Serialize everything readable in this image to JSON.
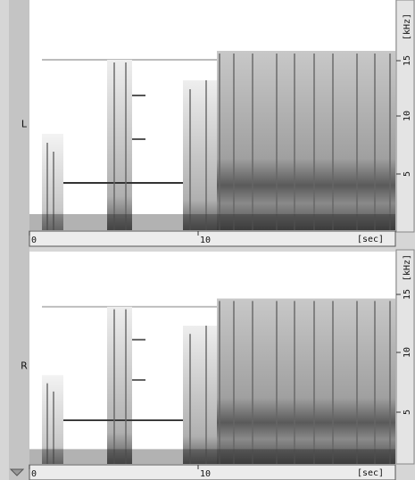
{
  "channels": [
    {
      "label": "L",
      "time_axis": {
        "ticks": [
          "0",
          "10"
        ],
        "unit": "[sec]"
      },
      "freq_axis": {
        "ticks": [
          "5",
          "10",
          "15"
        ],
        "unit": "[kHz]"
      }
    },
    {
      "label": "R",
      "time_axis": {
        "ticks": [
          "0",
          "10"
        ],
        "unit": "[sec]"
      },
      "freq_axis": {
        "ticks": [
          "5",
          "10",
          "15"
        ],
        "unit": "[kHz]"
      }
    }
  ]
}
